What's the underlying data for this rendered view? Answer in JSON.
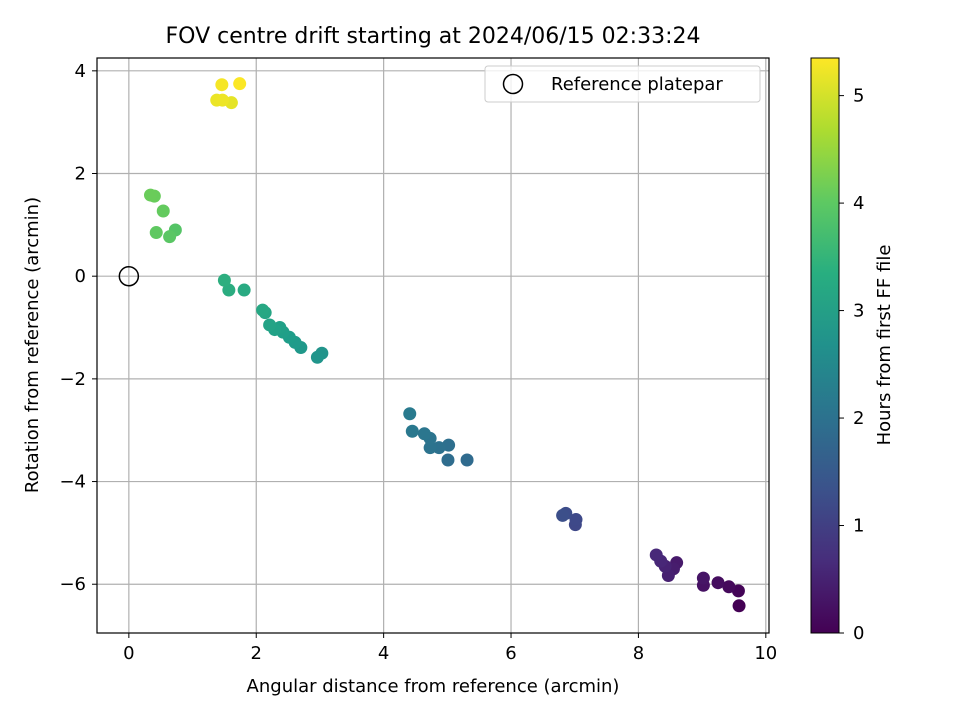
{
  "chart_data": {
    "type": "scatter",
    "title": "FOV centre drift starting at 2024/06/15 02:33:24",
    "xlabel": "Angular distance from reference (arcmin)",
    "ylabel": "Rotation from reference (arcmin)",
    "xlim": [
      -0.5,
      10.05
    ],
    "ylim": [
      -6.95,
      4.25
    ],
    "xticks": [
      0,
      2,
      4,
      6,
      8,
      10
    ],
    "xtick_labels": [
      "0",
      "2",
      "4",
      "6",
      "8",
      "10"
    ],
    "yticks": [
      -6,
      -4,
      -2,
      0,
      2,
      4
    ],
    "ytick_labels": [
      "−6",
      "−4",
      "−2",
      "0",
      "2",
      "4"
    ],
    "grid": true,
    "legend": {
      "position": "upper right",
      "entries": [
        "Reference platepar"
      ]
    },
    "reference_point": {
      "label": "Reference platepar",
      "x": 0,
      "y": 0
    },
    "colorbar": {
      "label": "Hours from first FF file",
      "colormap": "viridis",
      "range": [
        0,
        5.35
      ],
      "ticks": [
        0,
        1,
        2,
        3,
        4,
        5
      ],
      "tick_labels": [
        "0",
        "1",
        "2",
        "3",
        "4",
        "5"
      ]
    },
    "points": [
      {
        "x": 9.58,
        "y": -6.42,
        "h": 0.0
      },
      {
        "x": 9.57,
        "y": -6.13,
        "h": 0.05
      },
      {
        "x": 9.42,
        "y": -6.05,
        "h": 0.12
      },
      {
        "x": 9.25,
        "y": -5.97,
        "h": 0.18
      },
      {
        "x": 9.02,
        "y": -6.02,
        "h": 0.25
      },
      {
        "x": 9.02,
        "y": -5.88,
        "h": 0.3
      },
      {
        "x": 8.6,
        "y": -5.58,
        "h": 0.38
      },
      {
        "x": 8.55,
        "y": -5.7,
        "h": 0.42
      },
      {
        "x": 8.47,
        "y": -5.83,
        "h": 0.48
      },
      {
        "x": 8.42,
        "y": -5.65,
        "h": 0.52
      },
      {
        "x": 8.35,
        "y": -5.55,
        "h": 0.58
      },
      {
        "x": 8.28,
        "y": -5.43,
        "h": 0.62
      },
      {
        "x": 7.01,
        "y": -4.84,
        "h": 1.15
      },
      {
        "x": 7.02,
        "y": -4.74,
        "h": 1.18
      },
      {
        "x": 6.86,
        "y": -4.62,
        "h": 1.25
      },
      {
        "x": 6.81,
        "y": -4.66,
        "h": 1.28
      },
      {
        "x": 5.31,
        "y": -3.58,
        "h": 1.85
      },
      {
        "x": 5.01,
        "y": -3.58,
        "h": 1.9
      },
      {
        "x": 5.02,
        "y": -3.29,
        "h": 1.95
      },
      {
        "x": 4.87,
        "y": -3.34,
        "h": 2.0
      },
      {
        "x": 4.73,
        "y": -3.34,
        "h": 2.03
      },
      {
        "x": 4.73,
        "y": -3.16,
        "h": 2.06
      },
      {
        "x": 4.64,
        "y": -3.07,
        "h": 2.1
      },
      {
        "x": 4.45,
        "y": -3.02,
        "h": 2.15
      },
      {
        "x": 4.41,
        "y": -2.68,
        "h": 2.2
      },
      {
        "x": 3.03,
        "y": -1.5,
        "h": 2.75
      },
      {
        "x": 2.96,
        "y": -1.58,
        "h": 2.78
      },
      {
        "x": 2.7,
        "y": -1.39,
        "h": 2.85
      },
      {
        "x": 2.61,
        "y": -1.29,
        "h": 2.9
      },
      {
        "x": 2.52,
        "y": -1.19,
        "h": 2.95
      },
      {
        "x": 2.42,
        "y": -1.09,
        "h": 3.0
      },
      {
        "x": 2.37,
        "y": -1.0,
        "h": 3.03
      },
      {
        "x": 2.29,
        "y": -1.04,
        "h": 3.06
      },
      {
        "x": 2.21,
        "y": -0.95,
        "h": 3.1
      },
      {
        "x": 2.14,
        "y": -0.71,
        "h": 3.15
      },
      {
        "x": 2.1,
        "y": -0.66,
        "h": 3.18
      },
      {
        "x": 1.81,
        "y": -0.27,
        "h": 3.25
      },
      {
        "x": 1.57,
        "y": -0.27,
        "h": 3.3
      },
      {
        "x": 1.5,
        "y": -0.08,
        "h": 3.35
      },
      {
        "x": 0.73,
        "y": 0.9,
        "h": 3.9
      },
      {
        "x": 0.64,
        "y": 0.77,
        "h": 3.95
      },
      {
        "x": 0.43,
        "y": 0.85,
        "h": 4.0
      },
      {
        "x": 0.54,
        "y": 1.27,
        "h": 4.05
      },
      {
        "x": 0.4,
        "y": 1.56,
        "h": 4.1
      },
      {
        "x": 0.34,
        "y": 1.58,
        "h": 4.12
      },
      {
        "x": 1.61,
        "y": 3.38,
        "h": 5.15
      },
      {
        "x": 1.38,
        "y": 3.43,
        "h": 5.2
      },
      {
        "x": 1.47,
        "y": 3.43,
        "h": 5.22
      },
      {
        "x": 1.46,
        "y": 3.73,
        "h": 5.28
      },
      {
        "x": 1.74,
        "y": 3.75,
        "h": 5.33
      }
    ]
  }
}
